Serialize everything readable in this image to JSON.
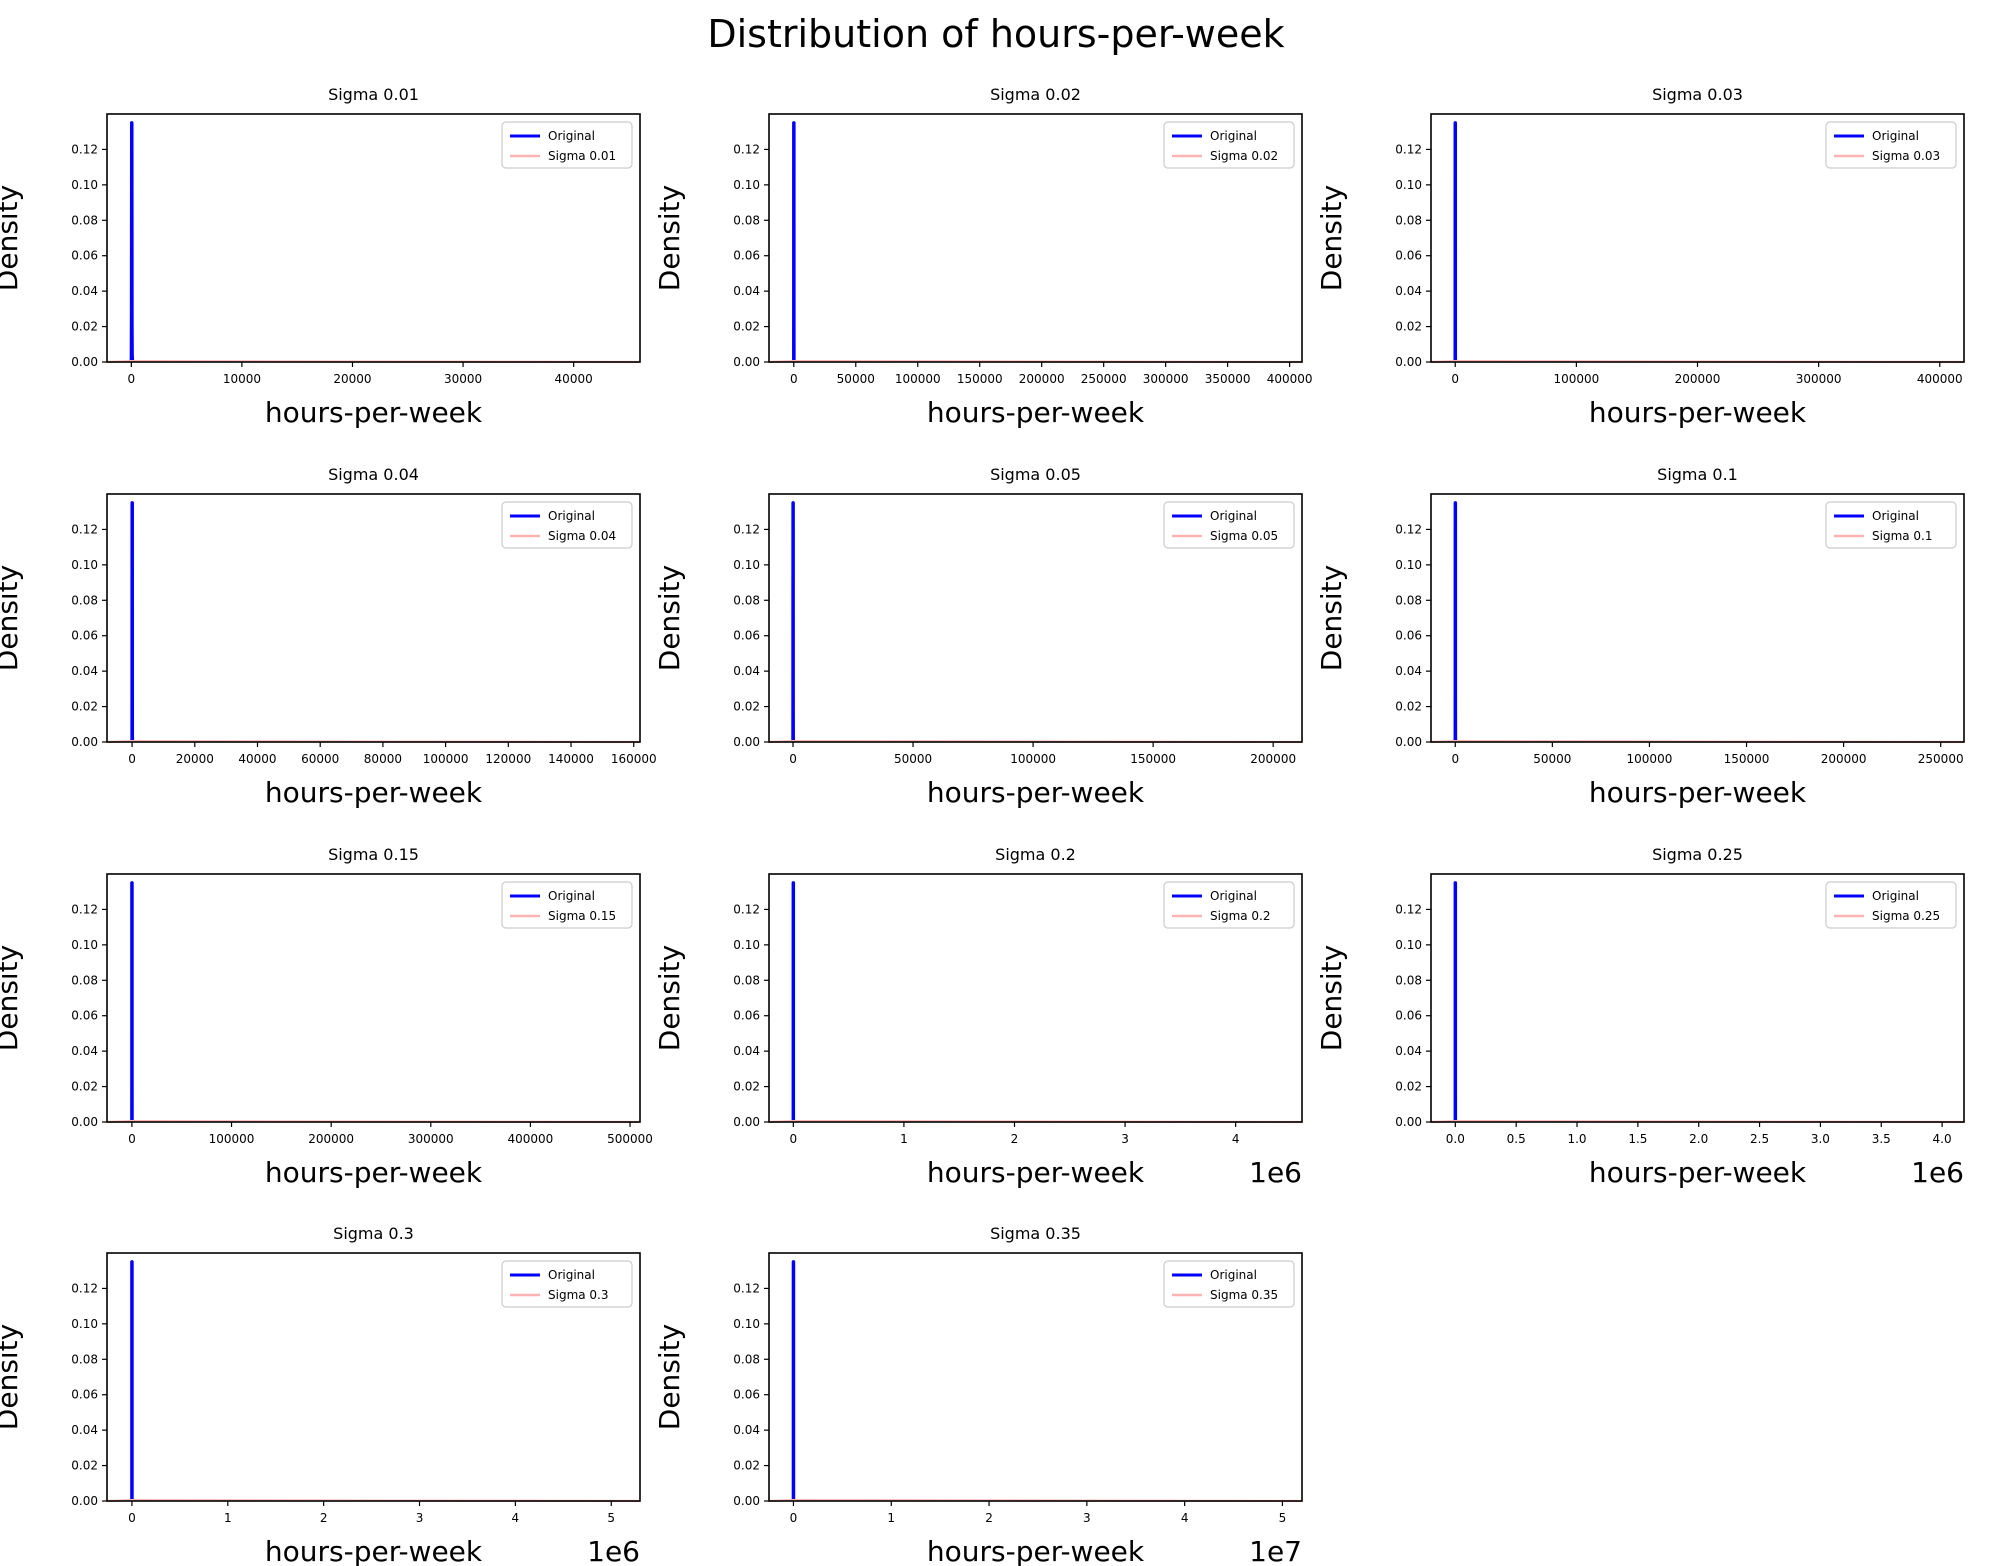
{
  "figure": {
    "title": "Distribution of hours-per-week",
    "original_color": "#0000ff",
    "noisy_color": "#ffb3b3"
  },
  "chart_data": [
    {
      "type": "line",
      "title": "Sigma 0.01",
      "xlabel": "hours-per-week",
      "ylabel": "Density",
      "offset_text": "",
      "xlim": [
        -2200,
        46000
      ],
      "ylim": [
        0,
        0.14
      ],
      "xticks": [
        0,
        10000,
        20000,
        30000,
        40000
      ],
      "xtick_labels": [
        "0",
        "10000",
        "20000",
        "30000",
        "40000"
      ],
      "yticks": [
        0,
        0.02,
        0.04,
        0.06,
        0.08,
        0.1,
        0.12
      ],
      "ytick_labels": [
        "0.00",
        "0.02",
        "0.04",
        "0.06",
        "0.08",
        "0.10",
        "0.12"
      ],
      "legend": [
        "Original",
        "Sigma 0.01"
      ],
      "legend_loc": "upper right",
      "series": [
        {
          "name": "Original",
          "x": [
            0,
            10,
            25,
            40,
            55,
            70,
            99
          ],
          "y": [
            0,
            0.003,
            0.03,
            0.135,
            0.02,
            0.004,
            0
          ]
        },
        {
          "name": "Sigma 0.01",
          "x": [
            -2200,
            0,
            46000
          ],
          "y": [
            0,
            0.0005,
            0
          ]
        }
      ]
    },
    {
      "type": "line",
      "title": "Sigma 0.02",
      "xlabel": "hours-per-week",
      "ylabel": "Density",
      "offset_text": "",
      "xlim": [
        -20000,
        410000
      ],
      "ylim": [
        0,
        0.14
      ],
      "xticks": [
        0,
        50000,
        100000,
        150000,
        200000,
        250000,
        300000,
        350000,
        400000
      ],
      "xtick_labels": [
        "0",
        "50000",
        "100000",
        "150000",
        "200000",
        "250000",
        "300000",
        "350000",
        "400000"
      ],
      "yticks": [
        0,
        0.02,
        0.04,
        0.06,
        0.08,
        0.1,
        0.12
      ],
      "ytick_labels": [
        "0.00",
        "0.02",
        "0.04",
        "0.06",
        "0.08",
        "0.10",
        "0.12"
      ],
      "legend": [
        "Original",
        "Sigma 0.02"
      ],
      "legend_loc": "upper right",
      "series": [
        {
          "name": "Original",
          "x": [
            0,
            10,
            25,
            40,
            55,
            70,
            99
          ],
          "y": [
            0,
            0.003,
            0.03,
            0.135,
            0.02,
            0.004,
            0
          ]
        },
        {
          "name": "Sigma 0.02",
          "x": [
            -20000,
            0,
            410000
          ],
          "y": [
            0,
            0.0005,
            0
          ]
        }
      ]
    },
    {
      "type": "line",
      "title": "Sigma 0.03",
      "xlabel": "hours-per-week",
      "ylabel": "Density",
      "offset_text": "",
      "xlim": [
        -20000,
        420000
      ],
      "ylim": [
        0,
        0.14
      ],
      "xticks": [
        0,
        100000,
        200000,
        300000,
        400000
      ],
      "xtick_labels": [
        "0",
        "100000",
        "200000",
        "300000",
        "400000"
      ],
      "yticks": [
        0,
        0.02,
        0.04,
        0.06,
        0.08,
        0.1,
        0.12
      ],
      "ytick_labels": [
        "0.00",
        "0.02",
        "0.04",
        "0.06",
        "0.08",
        "0.10",
        "0.12"
      ],
      "legend": [
        "Original",
        "Sigma 0.03"
      ],
      "legend_loc": "upper right",
      "series": [
        {
          "name": "Original",
          "x": [
            0,
            10,
            25,
            40,
            55,
            70,
            99
          ],
          "y": [
            0,
            0.003,
            0.03,
            0.135,
            0.02,
            0.004,
            0
          ]
        },
        {
          "name": "Sigma 0.03",
          "x": [
            -20000,
            0,
            420000
          ],
          "y": [
            0,
            0.0005,
            0
          ]
        }
      ]
    },
    {
      "type": "line",
      "title": "Sigma 0.04",
      "xlabel": "hours-per-week",
      "ylabel": "Density",
      "offset_text": "",
      "xlim": [
        -8000,
        162000
      ],
      "ylim": [
        0,
        0.14
      ],
      "xticks": [
        0,
        20000,
        40000,
        60000,
        80000,
        100000,
        120000,
        140000,
        160000
      ],
      "xtick_labels": [
        "0",
        "20000",
        "40000",
        "60000",
        "80000",
        "100000",
        "120000",
        "140000",
        "160000"
      ],
      "yticks": [
        0,
        0.02,
        0.04,
        0.06,
        0.08,
        0.1,
        0.12
      ],
      "ytick_labels": [
        "0.00",
        "0.02",
        "0.04",
        "0.06",
        "0.08",
        "0.10",
        "0.12"
      ],
      "legend": [
        "Original",
        "Sigma 0.04"
      ],
      "legend_loc": "upper right",
      "series": [
        {
          "name": "Original",
          "x": [
            0,
            10,
            25,
            40,
            55,
            70,
            99
          ],
          "y": [
            0,
            0.003,
            0.03,
            0.135,
            0.02,
            0.004,
            0
          ]
        },
        {
          "name": "Sigma 0.04",
          "x": [
            -8000,
            0,
            162000
          ],
          "y": [
            0,
            0.0005,
            0
          ]
        }
      ]
    },
    {
      "type": "line",
      "title": "Sigma 0.05",
      "xlabel": "hours-per-week",
      "ylabel": "Density",
      "offset_text": "",
      "xlim": [
        -10000,
        212000
      ],
      "ylim": [
        0,
        0.14
      ],
      "xticks": [
        0,
        50000,
        100000,
        150000,
        200000
      ],
      "xtick_labels": [
        "0",
        "50000",
        "100000",
        "150000",
        "200000"
      ],
      "yticks": [
        0,
        0.02,
        0.04,
        0.06,
        0.08,
        0.1,
        0.12
      ],
      "ytick_labels": [
        "0.00",
        "0.02",
        "0.04",
        "0.06",
        "0.08",
        "0.10",
        "0.12"
      ],
      "legend": [
        "Original",
        "Sigma 0.05"
      ],
      "legend_loc": "upper right",
      "series": [
        {
          "name": "Original",
          "x": [
            0,
            10,
            25,
            40,
            55,
            70,
            99
          ],
          "y": [
            0,
            0.003,
            0.03,
            0.135,
            0.02,
            0.004,
            0
          ]
        },
        {
          "name": "Sigma 0.05",
          "x": [
            -10000,
            0,
            212000
          ],
          "y": [
            0,
            0.0005,
            0
          ]
        }
      ]
    },
    {
      "type": "line",
      "title": "Sigma 0.1",
      "xlabel": "hours-per-week",
      "ylabel": "Density",
      "offset_text": "",
      "xlim": [
        -12500,
        262000
      ],
      "ylim": [
        0,
        0.14
      ],
      "xticks": [
        0,
        50000,
        100000,
        150000,
        200000,
        250000
      ],
      "xtick_labels": [
        "0",
        "50000",
        "100000",
        "150000",
        "200000",
        "250000"
      ],
      "yticks": [
        0,
        0.02,
        0.04,
        0.06,
        0.08,
        0.1,
        0.12
      ],
      "ytick_labels": [
        "0.00",
        "0.02",
        "0.04",
        "0.06",
        "0.08",
        "0.10",
        "0.12"
      ],
      "legend": [
        "Original",
        "Sigma 0.1"
      ],
      "legend_loc": "upper right",
      "series": [
        {
          "name": "Original",
          "x": [
            0,
            10,
            25,
            40,
            55,
            70,
            99
          ],
          "y": [
            0,
            0.003,
            0.03,
            0.135,
            0.02,
            0.004,
            0
          ]
        },
        {
          "name": "Sigma 0.1",
          "x": [
            -12500,
            0,
            262000
          ],
          "y": [
            0,
            0.0005,
            0
          ]
        }
      ]
    },
    {
      "type": "line",
      "title": "Sigma 0.15",
      "xlabel": "hours-per-week",
      "ylabel": "Density",
      "offset_text": "",
      "xlim": [
        -25000,
        510000
      ],
      "ylim": [
        0,
        0.14
      ],
      "xticks": [
        0,
        100000,
        200000,
        300000,
        400000,
        500000
      ],
      "xtick_labels": [
        "0",
        "100000",
        "200000",
        "300000",
        "400000",
        "500000"
      ],
      "yticks": [
        0,
        0.02,
        0.04,
        0.06,
        0.08,
        0.1,
        0.12
      ],
      "ytick_labels": [
        "0.00",
        "0.02",
        "0.04",
        "0.06",
        "0.08",
        "0.10",
        "0.12"
      ],
      "legend": [
        "Original",
        "Sigma 0.15"
      ],
      "legend_loc": "upper right",
      "series": [
        {
          "name": "Original",
          "x": [
            0,
            10,
            25,
            40,
            55,
            70,
            99
          ],
          "y": [
            0,
            0.003,
            0.03,
            0.135,
            0.02,
            0.004,
            0
          ]
        },
        {
          "name": "Sigma 0.15",
          "x": [
            -25000,
            0,
            510000
          ],
          "y": [
            0,
            0.0005,
            0
          ]
        }
      ]
    },
    {
      "type": "line",
      "title": "Sigma 0.2",
      "xlabel": "hours-per-week",
      "ylabel": "Density",
      "offset_text": "1e6",
      "xlim": [
        -220000,
        4600000
      ],
      "ylim": [
        0,
        0.14
      ],
      "xticks": [
        0,
        1000000,
        2000000,
        3000000,
        4000000
      ],
      "xtick_labels": [
        "0",
        "1",
        "2",
        "3",
        "4"
      ],
      "yticks": [
        0,
        0.02,
        0.04,
        0.06,
        0.08,
        0.1,
        0.12
      ],
      "ytick_labels": [
        "0.00",
        "0.02",
        "0.04",
        "0.06",
        "0.08",
        "0.10",
        "0.12"
      ],
      "legend": [
        "Original",
        "Sigma 0.2"
      ],
      "legend_loc": "upper right",
      "series": [
        {
          "name": "Original",
          "x": [
            0,
            10,
            25,
            40,
            55,
            70,
            99
          ],
          "y": [
            0,
            0.003,
            0.03,
            0.135,
            0.02,
            0.004,
            0
          ]
        },
        {
          "name": "Sigma 0.2",
          "x": [
            -220000,
            0,
            4600000
          ],
          "y": [
            0,
            0.0005,
            0
          ]
        }
      ]
    },
    {
      "type": "line",
      "title": "Sigma 0.25",
      "xlabel": "hours-per-week",
      "ylabel": "Density",
      "offset_text": "1e6",
      "xlim": [
        -200000,
        4180000
      ],
      "ylim": [
        0,
        0.14
      ],
      "xticks": [
        0,
        500000,
        1000000,
        1500000,
        2000000,
        2500000,
        3000000,
        3500000,
        4000000
      ],
      "xtick_labels": [
        "0.0",
        "0.5",
        "1.0",
        "1.5",
        "2.0",
        "2.5",
        "3.0",
        "3.5",
        "4.0"
      ],
      "yticks": [
        0,
        0.02,
        0.04,
        0.06,
        0.08,
        0.1,
        0.12
      ],
      "ytick_labels": [
        "0.00",
        "0.02",
        "0.04",
        "0.06",
        "0.08",
        "0.10",
        "0.12"
      ],
      "legend": [
        "Original",
        "Sigma 0.25"
      ],
      "legend_loc": "upper right",
      "series": [
        {
          "name": "Original",
          "x": [
            0,
            10,
            25,
            40,
            55,
            70,
            99
          ],
          "y": [
            0,
            0.003,
            0.03,
            0.135,
            0.02,
            0.004,
            0
          ]
        },
        {
          "name": "Sigma 0.25",
          "x": [
            -200000,
            0,
            4180000
          ],
          "y": [
            0,
            0.0005,
            0
          ]
        }
      ]
    },
    {
      "type": "line",
      "title": "Sigma 0.3",
      "xlabel": "hours-per-week",
      "ylabel": "Density",
      "offset_text": "1e6",
      "xlim": [
        -260000,
        5300000
      ],
      "ylim": [
        0,
        0.14
      ],
      "xticks": [
        0,
        1000000,
        2000000,
        3000000,
        4000000,
        5000000
      ],
      "xtick_labels": [
        "0",
        "1",
        "2",
        "3",
        "4",
        "5"
      ],
      "yticks": [
        0,
        0.02,
        0.04,
        0.06,
        0.08,
        0.1,
        0.12
      ],
      "ytick_labels": [
        "0.00",
        "0.02",
        "0.04",
        "0.06",
        "0.08",
        "0.10",
        "0.12"
      ],
      "legend": [
        "Original",
        "Sigma 0.3"
      ],
      "legend_loc": "upper right",
      "series": [
        {
          "name": "Original",
          "x": [
            0,
            10,
            25,
            40,
            55,
            70,
            99
          ],
          "y": [
            0,
            0.003,
            0.03,
            0.135,
            0.02,
            0.004,
            0
          ]
        },
        {
          "name": "Sigma 0.3",
          "x": [
            -260000,
            0,
            5300000
          ],
          "y": [
            0,
            0.0005,
            0
          ]
        }
      ]
    },
    {
      "type": "line",
      "title": "Sigma 0.35",
      "xlabel": "hours-per-week",
      "ylabel": "Density",
      "offset_text": "1e7",
      "xlim": [
        -2500000,
        52000000
      ],
      "ylim": [
        0,
        0.14
      ],
      "xticks": [
        0,
        10000000,
        20000000,
        30000000,
        40000000,
        50000000
      ],
      "xtick_labels": [
        "0",
        "1",
        "2",
        "3",
        "4",
        "5"
      ],
      "yticks": [
        0,
        0.02,
        0.04,
        0.06,
        0.08,
        0.1,
        0.12
      ],
      "ytick_labels": [
        "0.00",
        "0.02",
        "0.04",
        "0.06",
        "0.08",
        "0.10",
        "0.12"
      ],
      "legend": [
        "Original",
        "Sigma 0.35"
      ],
      "legend_loc": "upper right",
      "series": [
        {
          "name": "Original",
          "x": [
            0,
            10,
            25,
            40,
            55,
            70,
            99
          ],
          "y": [
            0,
            0.003,
            0.03,
            0.135,
            0.02,
            0.004,
            0
          ]
        },
        {
          "name": "Sigma 0.35",
          "x": [
            -2500000,
            0,
            52000000
          ],
          "y": [
            0,
            0.0005,
            0
          ]
        }
      ]
    }
  ]
}
